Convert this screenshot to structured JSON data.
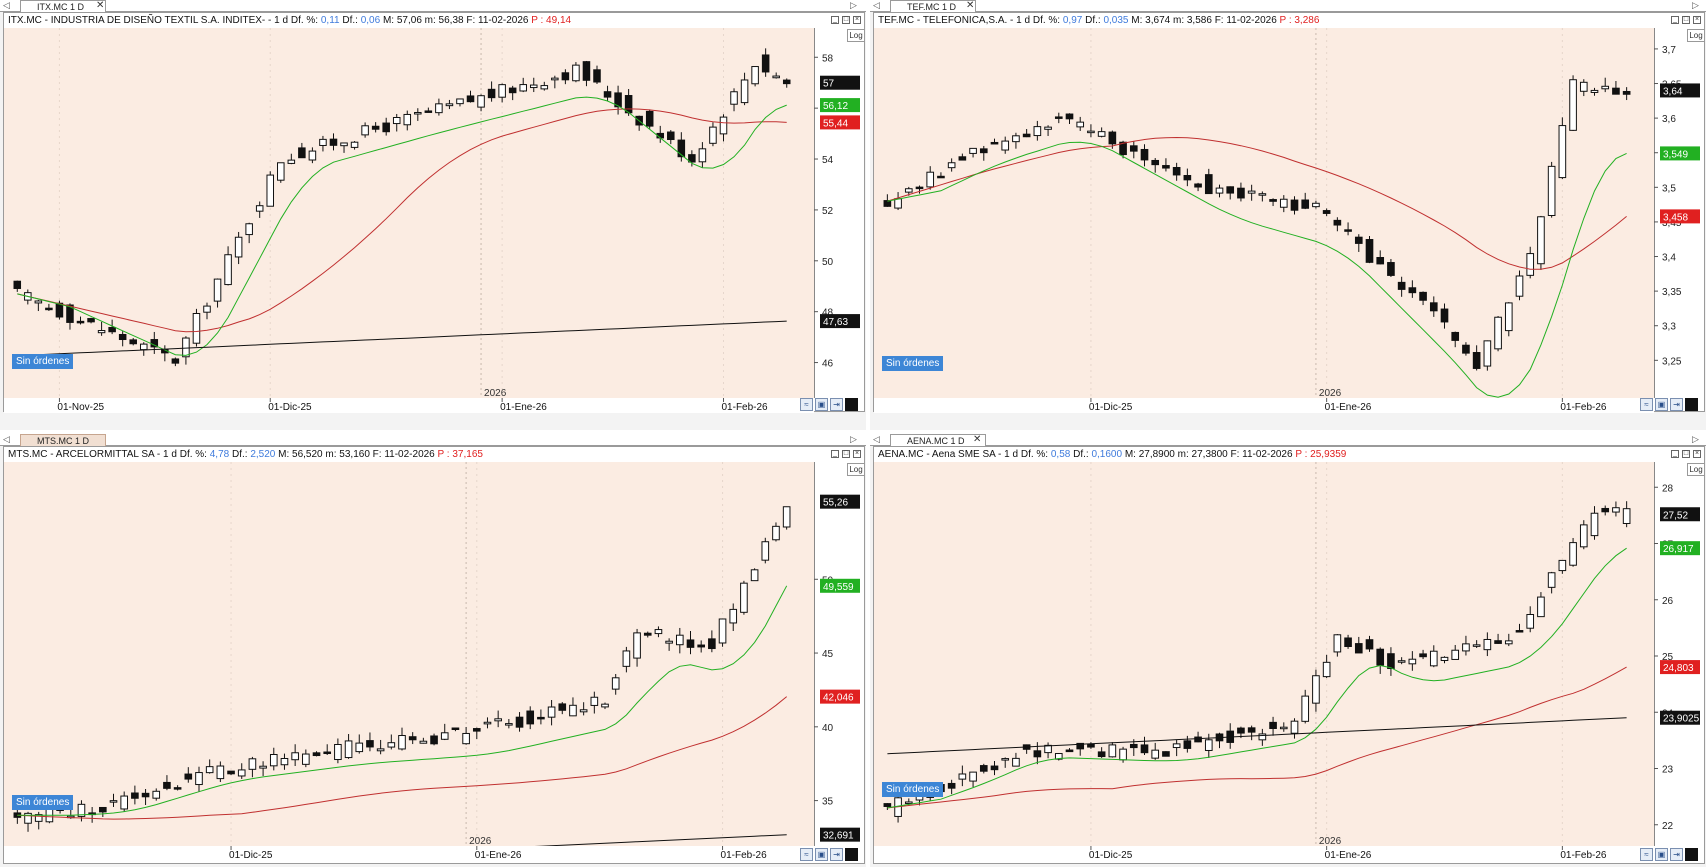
{
  "panels": [
    {
      "id": "itx",
      "tab": "ITX.MC 1 D",
      "tab_active": false,
      "info": {
        "name": "ITX.MC - INDUSTRIA DE DISEÑO TEXTIL S.A. INDITEX- -",
        "period": "1 d",
        "dfp_label": "Df. %:",
        "dfp": "0,11",
        "df_label": "Df.:",
        "df": "0,06",
        "max": "M: 57,06",
        "min": "m: 56,38",
        "date": "F: 11-02-2026",
        "p": "P : 49,14"
      },
      "log_label": "Log",
      "orders_label": "Sin órdenes",
      "yaxis": {
        "ticks": [
          "58",
          "56",
          "54",
          "52",
          "50",
          "48",
          "46"
        ],
        "tick_values": [
          58,
          56,
          54,
          52,
          50,
          48,
          46
        ],
        "min": 45.0,
        "max": 58.6
      },
      "price_tags": [
        {
          "label": "57",
          "value": 57.0,
          "color": "#111111"
        },
        {
          "label": "56,12",
          "value": 56.12,
          "color": "#22b022"
        },
        {
          "label": "55,44",
          "value": 55.44,
          "color": "#e02020"
        },
        {
          "label": "47,63",
          "value": 47.63,
          "color": "#111111"
        }
      ],
      "xaxis": {
        "year_label": "2026",
        "year_index": 44,
        "labels": [
          {
            "text": "01-Nov-25",
            "index": 4
          },
          {
            "text": "01-Dic-25",
            "index": 24
          },
          {
            "text": "01-Ene-26",
            "index": 46
          },
          {
            "text": "01-Feb-26",
            "index": 67
          }
        ]
      },
      "chart_data": {
        "type": "candlestick",
        "count": 74,
        "key_closes": [
          {
            "index": 0,
            "close": 48.7
          },
          {
            "index": 15,
            "close": 46.1
          },
          {
            "index": 25,
            "close": 54.0
          },
          {
            "index": 38,
            "close": 55.7
          },
          {
            "index": 53,
            "close": 57.5
          },
          {
            "index": 64,
            "close": 54.0
          },
          {
            "index": 70,
            "close": 57.8
          },
          {
            "index": 73,
            "close": 57.0
          }
        ],
        "ma_short": {
          "color": "#22b022",
          "end": 56.12
        },
        "ma_mid": {
          "color": "#c03030",
          "end": 55.44
        },
        "ma_long": {
          "color": "#111111",
          "end": 47.63
        }
      }
    },
    {
      "id": "tef",
      "tab": "TEF.MC 1 D",
      "tab_active": false,
      "info": {
        "name": "TEF.MC - TELEFONICA,S.A. -",
        "period": "1 d",
        "dfp_label": "Df. %:",
        "dfp": "0,97",
        "df_label": "Df.:",
        "df": "0,035",
        "max": "M: 3,674",
        "min": "m: 3,586",
        "date": "F: 11-02-2026",
        "p": "P : 3,286"
      },
      "log_label": "Log",
      "orders_label": "Sin órdenes",
      "yaxis": {
        "ticks": [
          "3,7",
          "3,65",
          "3,6",
          "3,55",
          "3,5",
          "3,45",
          "3,4",
          "3,35",
          "3,3",
          "3,25"
        ],
        "tick_values": [
          3.7,
          3.65,
          3.6,
          3.55,
          3.5,
          3.45,
          3.4,
          3.35,
          3.3,
          3.25
        ],
        "min": 3.21,
        "max": 3.71
      },
      "price_tags": [
        {
          "label": "3,64",
          "value": 3.64,
          "color": "#111111"
        },
        {
          "label": "3,549",
          "value": 3.549,
          "color": "#22b022"
        },
        {
          "label": "3,458",
          "value": 3.458,
          "color": "#e02020"
        }
      ],
      "xaxis": {
        "year_label": "2026",
        "year_index": 40,
        "labels": [
          {
            "text": "01-Dic-25",
            "index": 19
          },
          {
            "text": "01-Ene-26",
            "index": 41
          },
          {
            "text": "01-Feb-26",
            "index": 63
          }
        ]
      },
      "chart_data": {
        "type": "candlestick",
        "count": 70,
        "key_closes": [
          {
            "index": 0,
            "close": 3.48
          },
          {
            "index": 8,
            "close": 3.55
          },
          {
            "index": 16,
            "close": 3.6
          },
          {
            "index": 30,
            "close": 3.5
          },
          {
            "index": 40,
            "close": 3.47
          },
          {
            "index": 52,
            "close": 3.3
          },
          {
            "index": 55,
            "close": 3.24
          },
          {
            "index": 60,
            "close": 3.4
          },
          {
            "index": 64,
            "close": 3.65
          },
          {
            "index": 69,
            "close": 3.64
          }
        ],
        "ma_short": {
          "color": "#22b022",
          "end": 3.549
        },
        "ma_mid": {
          "color": "#c03030",
          "end": 3.458
        }
      }
    },
    {
      "id": "mts",
      "tab": "MTS.MC 1 D",
      "tab_active": true,
      "info": {
        "name": "MTS.MC - ARCELORMITTAL SA -",
        "period": "1 d",
        "dfp_label": "Df. %:",
        "dfp": "4,78",
        "df_label": "Df.:",
        "df": "2,520",
        "max": "M: 56,520",
        "min": "m: 53,160",
        "date": "F: 11-02-2026",
        "p": "P : 37,165"
      },
      "log_label": "Log",
      "orders_label": "Sin órdenes",
      "yaxis": {
        "ticks": [
          "50",
          "45",
          "40",
          "35"
        ],
        "tick_values": [
          50,
          45,
          40,
          35
        ],
        "min": 32.6,
        "max": 57.0
      },
      "price_tags": [
        {
          "label": "55,26",
          "value": 55.26,
          "color": "#111111"
        },
        {
          "label": "49,559",
          "value": 49.559,
          "color": "#22b022"
        },
        {
          "label": "42,046",
          "value": 42.046,
          "color": "#e02020"
        },
        {
          "label": "32,691",
          "value": 32.691,
          "color": "#111111"
        }
      ],
      "xaxis": {
        "year_label": "2026",
        "year_index": 42,
        "labels": [
          {
            "text": "01-Dic-25",
            "index": 20
          },
          {
            "text": "01-Ene-26",
            "index": 43
          },
          {
            "text": "01-Feb-26",
            "index": 66
          }
        ]
      },
      "chart_data": {
        "type": "candlestick",
        "count": 73,
        "key_closes": [
          {
            "index": 0,
            "close": 34.0
          },
          {
            "index": 8,
            "close": 34.5
          },
          {
            "index": 18,
            "close": 37.0
          },
          {
            "index": 30,
            "close": 38.5
          },
          {
            "index": 42,
            "close": 39.5
          },
          {
            "index": 55,
            "close": 42.0
          },
          {
            "index": 58,
            "close": 46.5
          },
          {
            "index": 65,
            "close": 45.5
          },
          {
            "index": 72,
            "close": 55.26
          }
        ],
        "ma_short": {
          "color": "#22b022",
          "end": 49.559
        },
        "ma_mid": {
          "color": "#c03030",
          "end": 42.046
        },
        "ma_long": {
          "color": "#111111",
          "end": 32.691
        }
      }
    },
    {
      "id": "aena",
      "tab": "AENA.MC 1 D",
      "tab_active": false,
      "info": {
        "name": "AENA.MC - Aena SME SA -",
        "period": "1 d",
        "dfp_label": "Df. %:",
        "dfp": "0,58",
        "df_label": "Df.:",
        "df": "0,1600",
        "max": "M: 27,8900",
        "min": "m: 27,3800",
        "date": "F: 11-02-2026",
        "p": "P : 25,9359"
      },
      "log_label": "Log",
      "orders_label": "Sin órdenes",
      "yaxis": {
        "ticks": [
          "28",
          "27",
          "26",
          "25",
          "24",
          "23",
          "22"
        ],
        "tick_values": [
          28,
          27,
          26,
          25,
          24,
          23,
          22
        ],
        "min": 21.8,
        "max": 28.2
      },
      "price_tags": [
        {
          "label": "27,52",
          "value": 27.52,
          "color": "#111111"
        },
        {
          "label": "26,917",
          "value": 26.917,
          "color": "#22b022"
        },
        {
          "label": "24,803",
          "value": 24.803,
          "color": "#e02020"
        },
        {
          "label": "23,9025",
          "value": 23.9025,
          "color": "#111111"
        }
      ],
      "xaxis": {
        "year_label": "2026",
        "year_index": 40,
        "labels": [
          {
            "text": "01-Dic-25",
            "index": 19
          },
          {
            "text": "01-Ene-26",
            "index": 41
          },
          {
            "text": "01-Feb-26",
            "index": 63
          }
        ]
      },
      "chart_data": {
        "type": "candlestick",
        "count": 70,
        "key_closes": [
          {
            "index": 0,
            "close": 22.3
          },
          {
            "index": 8,
            "close": 22.9
          },
          {
            "index": 12,
            "close": 23.3
          },
          {
            "index": 25,
            "close": 23.3
          },
          {
            "index": 38,
            "close": 23.8
          },
          {
            "index": 42,
            "close": 25.4
          },
          {
            "index": 47,
            "close": 24.8
          },
          {
            "index": 58,
            "close": 25.3
          },
          {
            "index": 66,
            "close": 27.5
          },
          {
            "index": 69,
            "close": 27.52
          }
        ],
        "ma_short": {
          "color": "#22b022",
          "end": 26.917
        },
        "ma_mid": {
          "color": "#c03030",
          "end": 24.803
        },
        "ma_long": {
          "color": "#111111",
          "end": 23.9025
        }
      }
    }
  ]
}
